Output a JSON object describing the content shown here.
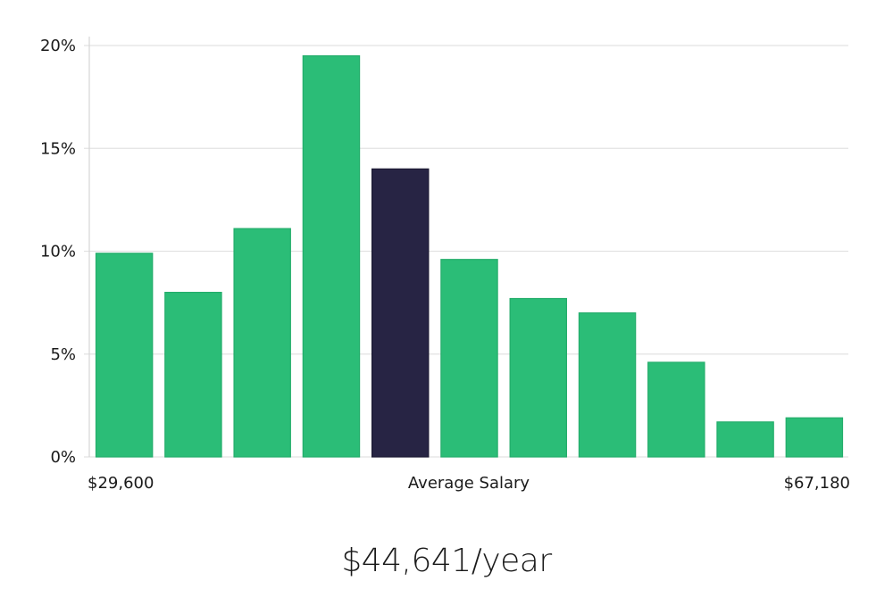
{
  "chart_data": {
    "type": "bar",
    "title": "",
    "xlabel": "",
    "ylabel": "",
    "ylim": [
      0,
      20
    ],
    "y_ticks": [
      "0%",
      "5%",
      "10%",
      "15%",
      "20%"
    ],
    "y_tick_values": [
      0,
      5,
      10,
      15,
      20
    ],
    "values": [
      9.9,
      8.0,
      11.1,
      19.5,
      14.0,
      9.6,
      7.7,
      7.0,
      4.6,
      1.7,
      1.9
    ],
    "highlight_index": 4,
    "x_labels": {
      "min": "$29,600",
      "center": "Average Salary",
      "max": "$67,180"
    },
    "grid": true
  },
  "summary": {
    "average_salary": "$44,641/year"
  },
  "colors": {
    "bar": "#2bbd77",
    "highlight": "#272444",
    "grid": "#e2e2e2",
    "axis": "#d6d6d6"
  }
}
